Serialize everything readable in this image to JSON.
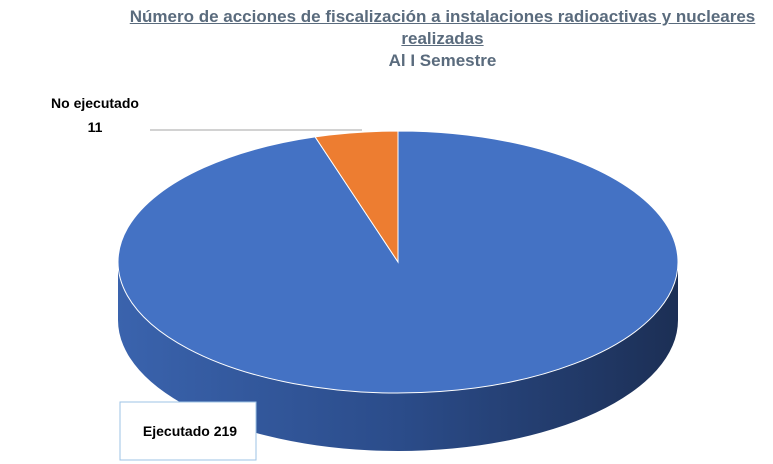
{
  "chart_data": {
    "type": "pie",
    "title": "Número de acciones de fiscalización a instalaciones radioactivas y nucleares realizadas",
    "subtitle": "Al I Semestre",
    "categories": [
      "Ejecutado",
      "No ejecutado"
    ],
    "values": [
      219,
      11
    ],
    "colors": [
      "#4472c4",
      "#ed7d31"
    ]
  }
}
